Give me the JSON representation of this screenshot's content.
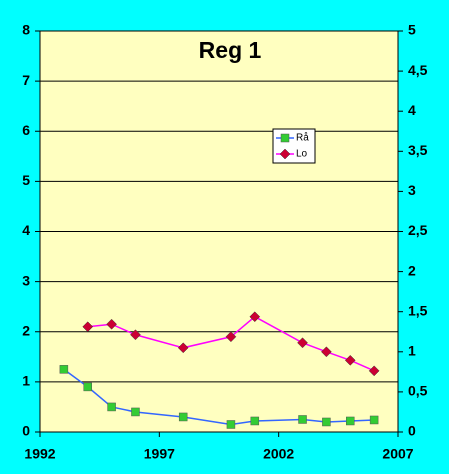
{
  "chart_data": {
    "type": "line",
    "title": "Reg 1",
    "x": [
      1993,
      1994,
      1995,
      1996,
      1998,
      2000,
      2001,
      2003,
      2004,
      2005,
      2006
    ],
    "series": [
      {
        "name": "Rå",
        "color": "#3366ff",
        "marker_color": "#33cc33",
        "marker": "square",
        "values": [
          1.25,
          0.9,
          0.5,
          0.4,
          0.3,
          0.15,
          0.22,
          0.25,
          0.2,
          0.22,
          0.24
        ]
      },
      {
        "name": "Lo",
        "color": "#ff00ff",
        "marker_color": "#cc0033",
        "marker": "diamond",
        "values": [
          null,
          2.1,
          2.15,
          1.94,
          1.68,
          1.9,
          2.3,
          1.78,
          1.6,
          1.43,
          1.22
        ]
      }
    ],
    "xlim": [
      1992,
      2007
    ],
    "xticks": [
      1992,
      1997,
      2002,
      2007
    ],
    "ylim": [
      0,
      8
    ],
    "yticks": [
      0,
      1,
      2,
      3,
      4,
      5,
      6,
      7,
      8
    ],
    "y2lim": [
      0,
      5
    ],
    "y2ticks": [
      0,
      {
        "value": 0.5,
        "label": "0,5"
      },
      1,
      {
        "value": 1.5,
        "label": "1,5"
      },
      2,
      {
        "value": 2.5,
        "label": "2,5"
      },
      3,
      {
        "value": 3.5,
        "label": "3,5"
      },
      4,
      {
        "value": 4.5,
        "label": "4,5"
      },
      5
    ],
    "grid": true,
    "legend": "center-right"
  }
}
